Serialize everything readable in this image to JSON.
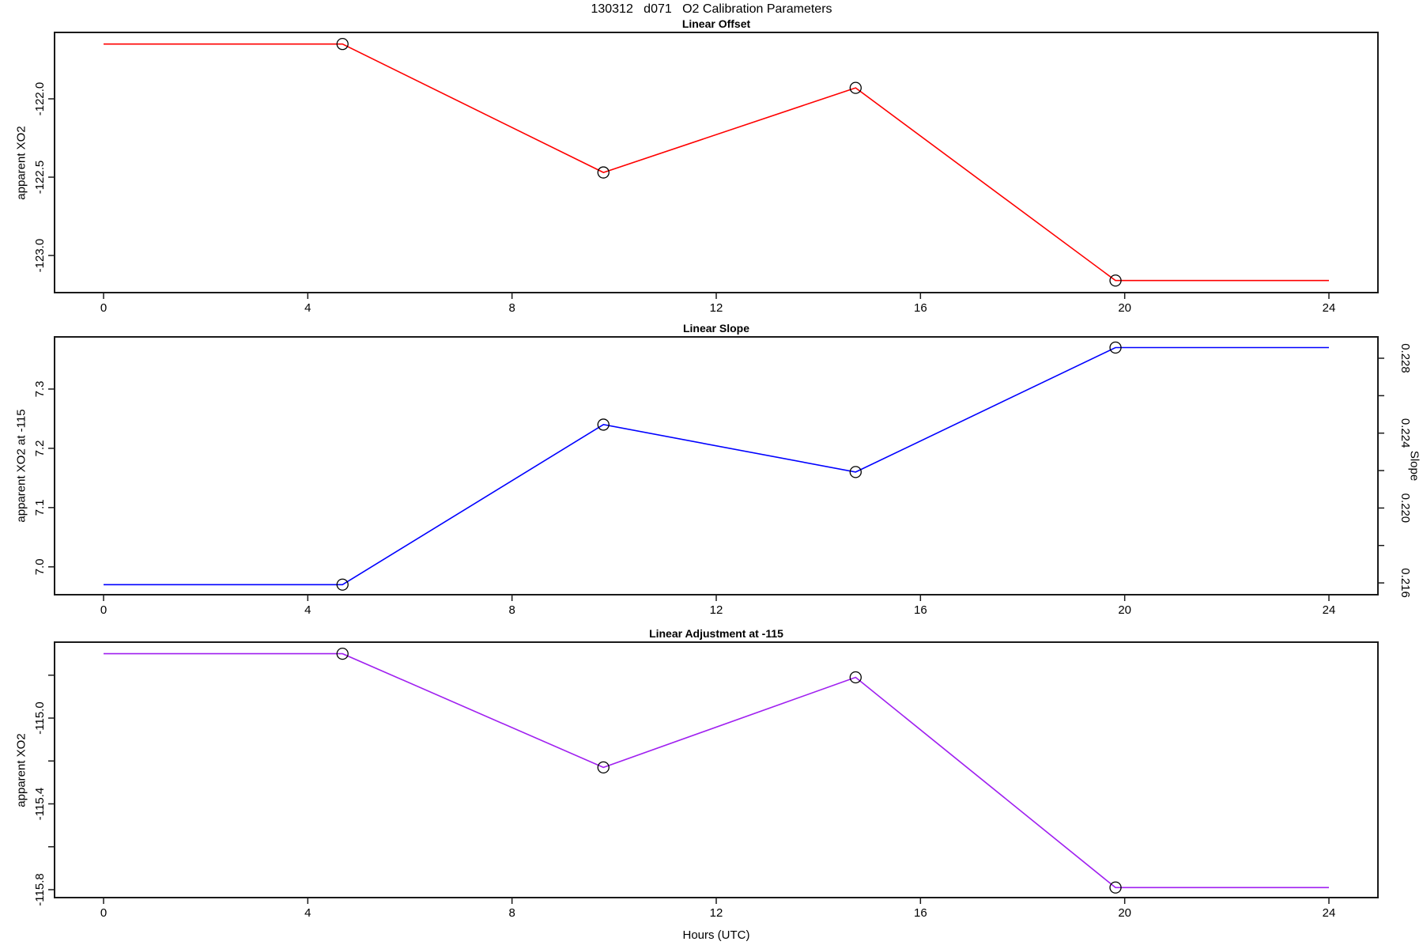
{
  "page_title": "130312   d071   O2 Calibration Parameters",
  "xlabel": "Hours (UTC)",
  "marker_color": "#000000",
  "axis_color": "#1a1a1a",
  "x_axis": {
    "limits": [
      -0.96,
      24.96
    ],
    "ticks": [
      0,
      4,
      8,
      12,
      16,
      20,
      24
    ],
    "tick_labels": [
      "0",
      "4",
      "8",
      "12",
      "16",
      "20",
      "24"
    ]
  },
  "chart_data": [
    {
      "type": "line",
      "title": "Linear Offset",
      "ylabel": "apparent XO2",
      "color": "#FF0000",
      "x": [
        4.68,
        9.79,
        14.73,
        19.82
      ],
      "y": [
        -121.65,
        -122.47,
        -121.93,
        -123.16
      ],
      "flat_ends_x": [
        0,
        24
      ],
      "ylim": [
        -123.237,
        -121.576
      ],
      "yticks": [
        -123.0,
        -122.5,
        -122.0
      ],
      "ytick_labels": [
        "-123.0",
        "-122.5",
        "-122.0"
      ]
    },
    {
      "type": "line",
      "title": "Linear Slope",
      "ylabel": "apparent XO2 at -115",
      "ylabel_right": "Slope",
      "color": "#0000FF",
      "x": [
        4.68,
        9.79,
        14.73,
        19.82
      ],
      "y": [
        6.97,
        7.24,
        7.16,
        7.37
      ],
      "y_right": [
        0.2159,
        0.2244,
        0.2218,
        0.2285
      ],
      "flat_ends_x": [
        0,
        24
      ],
      "ylim": [
        6.953,
        7.388
      ],
      "yticks": [
        7.0,
        7.1,
        7.2,
        7.3
      ],
      "ytick_labels": [
        "7.0",
        "7.1",
        "7.2",
        "7.3"
      ],
      "right_ylim": [
        0.21537,
        0.22914
      ],
      "right_yticks": [
        0.216,
        0.218,
        0.22,
        0.222,
        0.224,
        0.226,
        0.228
      ],
      "right_ytick_labels": [
        "0.216",
        "",
        "0.220",
        "",
        "0.224",
        "",
        "0.228"
      ]
    },
    {
      "type": "line",
      "title": "Linear Adjustment at -115",
      "ylabel": "apparent XO2",
      "color": "#A020F0",
      "x": [
        4.68,
        9.79,
        14.73,
        19.82
      ],
      "y": [
        -114.7,
        -115.23,
        -114.81,
        -115.79
      ],
      "flat_ends_x": [
        0,
        24
      ],
      "ylim": [
        -115.837,
        -114.646
      ],
      "yticks": [
        -115.8,
        -115.6,
        -115.4,
        -115.2,
        -115.0,
        -114.8
      ],
      "ytick_labels": [
        "-115.8",
        "",
        "-115.4",
        "",
        "-115.0",
        ""
      ]
    }
  ]
}
